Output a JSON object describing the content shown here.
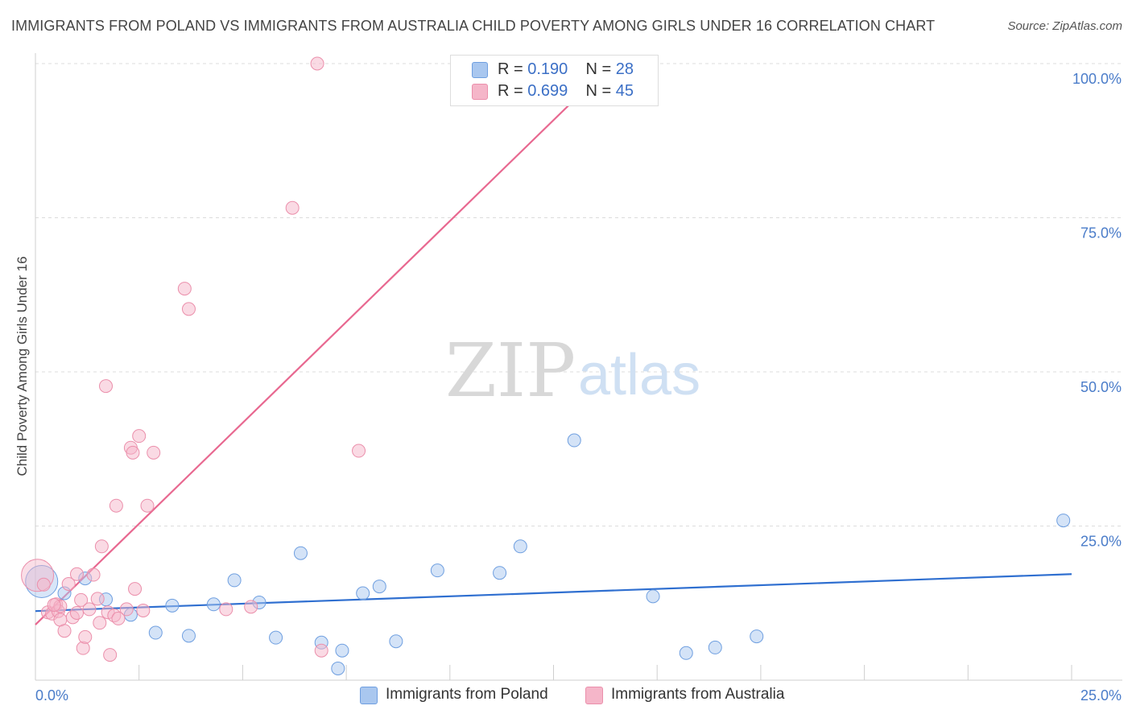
{
  "title": "IMMIGRANTS FROM POLAND VS IMMIGRANTS FROM AUSTRALIA CHILD POVERTY AMONG GIRLS UNDER 16 CORRELATION CHART",
  "source": "Source: ZipAtlas.com",
  "watermark": {
    "zip": "ZIP",
    "atlas": "atlas"
  },
  "legend": {
    "rows": [
      {
        "r_label": "R =",
        "r_value": "0.190",
        "n_label": "N =",
        "n_value": "28",
        "color": "#a9c7ef"
      },
      {
        "r_label": "R =",
        "r_value": "0.699",
        "n_label": "N =",
        "n_value": "45",
        "color": "#f5b6c9"
      }
    ]
  },
  "bottom_legend": [
    {
      "label": "Immigrants from Poland",
      "color": "#a9c7ef"
    },
    {
      "label": "Immigrants from Australia",
      "color": "#f5b6c9"
    }
  ],
  "chart_data": {
    "type": "scatter",
    "title": "IMMIGRANTS FROM POLAND VS IMMIGRANTS FROM AUSTRALIA CHILD POVERTY AMONG GIRLS UNDER 16 CORRELATION CHART",
    "xlabel": "",
    "ylabel": "Child Poverty Among Girls Under 16",
    "xlim": [
      0,
      25
    ],
    "ylim": [
      0,
      100
    ],
    "x_tick_labels": [
      "0.0%",
      "25.0%"
    ],
    "y_ticks": [
      25,
      50,
      75,
      100
    ],
    "y_tick_labels": [
      "25.0%",
      "50.0%",
      "75.0%",
      "100.0%"
    ],
    "grid": "horizontal dashed",
    "series": [
      {
        "name": "Immigrants from Poland",
        "color": "#6f9fe0",
        "fill": "#a9c7ef",
        "line_color": "#2f6fd0",
        "trend": {
          "x": [
            0,
            25
          ],
          "y": [
            11.2,
            17.2
          ]
        },
        "points": [
          {
            "x": 0.15,
            "y": 16.0,
            "big": true
          },
          {
            "x": 0.7,
            "y": 14.1
          },
          {
            "x": 1.2,
            "y": 16.5
          },
          {
            "x": 1.7,
            "y": 13.1
          },
          {
            "x": 2.3,
            "y": 10.6
          },
          {
            "x": 2.9,
            "y": 7.7
          },
          {
            "x": 3.3,
            "y": 12.1
          },
          {
            "x": 3.7,
            "y": 7.2
          },
          {
            "x": 4.3,
            "y": 12.3
          },
          {
            "x": 4.8,
            "y": 16.2
          },
          {
            "x": 5.4,
            "y": 12.6
          },
          {
            "x": 5.8,
            "y": 6.9
          },
          {
            "x": 6.4,
            "y": 20.6
          },
          {
            "x": 6.9,
            "y": 6.1
          },
          {
            "x": 7.4,
            "y": 4.8
          },
          {
            "x": 7.9,
            "y": 14.1
          },
          {
            "x": 8.3,
            "y": 15.2
          },
          {
            "x": 8.7,
            "y": 6.3
          },
          {
            "x": 9.7,
            "y": 17.8
          },
          {
            "x": 11.2,
            "y": 17.4
          },
          {
            "x": 11.7,
            "y": 21.7
          },
          {
            "x": 13.0,
            "y": 38.9
          },
          {
            "x": 14.9,
            "y": 13.6
          },
          {
            "x": 15.7,
            "y": 4.4
          },
          {
            "x": 16.4,
            "y": 5.3
          },
          {
            "x": 17.4,
            "y": 7.1
          },
          {
            "x": 24.8,
            "y": 25.9
          },
          {
            "x": 7.3,
            "y": 1.9
          }
        ]
      },
      {
        "name": "Immigrants from Australia",
        "color": "#eb8fab",
        "fill": "#f5b6c9",
        "line_color": "#e86890",
        "trend": {
          "x": [
            0,
            13.9
          ],
          "y": [
            9.0,
            100
          ]
        },
        "points": [
          {
            "x": 0.05,
            "y": 17.0,
            "big": true
          },
          {
            "x": 0.2,
            "y": 15.5
          },
          {
            "x": 0.3,
            "y": 11.0
          },
          {
            "x": 0.4,
            "y": 10.8
          },
          {
            "x": 0.5,
            "y": 12.3
          },
          {
            "x": 0.55,
            "y": 11.2
          },
          {
            "x": 0.6,
            "y": 12.0
          },
          {
            "x": 0.6,
            "y": 9.8
          },
          {
            "x": 0.7,
            "y": 8.0
          },
          {
            "x": 0.8,
            "y": 15.6
          },
          {
            "x": 0.9,
            "y": 10.2
          },
          {
            "x": 1.0,
            "y": 17.2
          },
          {
            "x": 1.1,
            "y": 13.0
          },
          {
            "x": 1.15,
            "y": 5.2
          },
          {
            "x": 1.2,
            "y": 7.0
          },
          {
            "x": 1.3,
            "y": 11.5
          },
          {
            "x": 1.4,
            "y": 17.1
          },
          {
            "x": 1.5,
            "y": 13.2
          },
          {
            "x": 1.55,
            "y": 9.3
          },
          {
            "x": 1.6,
            "y": 21.7
          },
          {
            "x": 1.7,
            "y": 47.7
          },
          {
            "x": 1.75,
            "y": 11.0
          },
          {
            "x": 1.8,
            "y": 4.1
          },
          {
            "x": 1.9,
            "y": 10.5
          },
          {
            "x": 1.95,
            "y": 28.3
          },
          {
            "x": 2.2,
            "y": 11.5
          },
          {
            "x": 2.3,
            "y": 37.7
          },
          {
            "x": 2.35,
            "y": 36.9
          },
          {
            "x": 2.4,
            "y": 14.8
          },
          {
            "x": 2.5,
            "y": 39.6
          },
          {
            "x": 2.6,
            "y": 11.3
          },
          {
            "x": 2.7,
            "y": 28.3
          },
          {
            "x": 2.85,
            "y": 36.9
          },
          {
            "x": 3.6,
            "y": 63.5
          },
          {
            "x": 3.7,
            "y": 60.2
          },
          {
            "x": 4.6,
            "y": 11.5
          },
          {
            "x": 5.2,
            "y": 11.9
          },
          {
            "x": 6.2,
            "y": 76.6
          },
          {
            "x": 6.8,
            "y": 100.0
          },
          {
            "x": 6.9,
            "y": 4.8
          },
          {
            "x": 7.8,
            "y": 37.2
          },
          {
            "x": 13.9,
            "y": 100.0
          },
          {
            "x": 1.0,
            "y": 10.9
          },
          {
            "x": 0.45,
            "y": 12.2
          },
          {
            "x": 2.0,
            "y": 10.0
          }
        ]
      }
    ]
  }
}
